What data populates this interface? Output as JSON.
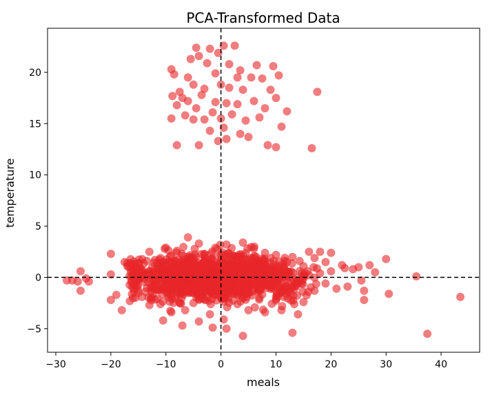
{
  "chart_data": {
    "type": "scatter",
    "title": "PCA-Transformed Data",
    "xlabel": "meals",
    "ylabel": "temperature",
    "xlim": [
      -31.5,
      47.0
    ],
    "ylim": [
      -7.3,
      24.3
    ],
    "xticks": [
      -30,
      -20,
      -10,
      0,
      10,
      20,
      30,
      40
    ],
    "yticks": [
      -5,
      0,
      5,
      10,
      15,
      20
    ],
    "xtick_labels": [
      "−30",
      "−20",
      "−10",
      "0",
      "10",
      "20",
      "30",
      "40"
    ],
    "ytick_labels": [
      "−5",
      "0",
      "5",
      "10",
      "15",
      "20"
    ],
    "grid": false,
    "reference_lines": {
      "x": 0,
      "y": 0,
      "style": "dashed",
      "color": "#000000"
    },
    "marker": {
      "color": "#e8262a",
      "opacity": 0.6
    },
    "points_main": [
      [
        -28,
        -0.3
      ],
      [
        -27,
        -0.3
      ],
      [
        -26,
        -0.4
      ],
      [
        -25.5,
        0.6
      ],
      [
        -25.5,
        -1.3
      ],
      [
        -24.5,
        -0.1
      ],
      [
        -24,
        -0.4
      ],
      [
        -20,
        2.3
      ],
      [
        -20,
        0.3
      ],
      [
        -20,
        -2.2
      ],
      [
        -19,
        -1.7
      ],
      [
        -18,
        -3.2
      ],
      [
        -17.5,
        1.5
      ],
      [
        -17,
        1.4
      ],
      [
        -16,
        -2.0
      ],
      [
        -15,
        1.4
      ],
      [
        -15,
        -1.5
      ],
      [
        -14,
        -0.1
      ],
      [
        -13,
        2.5
      ],
      [
        -13,
        -2.7
      ],
      [
        -12,
        1.7
      ],
      [
        -11,
        1.9
      ],
      [
        -11,
        -2.6
      ],
      [
        -10.5,
        -4.2
      ],
      [
        -10,
        2.9
      ],
      [
        -10,
        0.5
      ],
      [
        -9,
        -3.4
      ],
      [
        -9,
        -1.2
      ],
      [
        -8,
        2.6
      ],
      [
        -7.5,
        1.4
      ],
      [
        -7,
        -4.7
      ],
      [
        -6.5,
        -3.2
      ],
      [
        -6,
        1.5
      ],
      [
        -6,
        3.9
      ],
      [
        -5,
        -0.6
      ],
      [
        -5,
        -2.5
      ],
      [
        -4,
        3.3
      ],
      [
        -4,
        1.1
      ],
      [
        -4,
        -4.3
      ],
      [
        -3,
        0.1
      ],
      [
        -3,
        2.3
      ],
      [
        -2,
        1.1
      ],
      [
        -2,
        -1.5
      ],
      [
        -2,
        -3.6
      ],
      [
        -1.5,
        -4.9
      ],
      [
        -1,
        2.9
      ],
      [
        -1,
        0.8
      ],
      [
        -0.5,
        -0.4
      ],
      [
        0,
        1.7
      ],
      [
        0,
        -2.0
      ],
      [
        0.5,
        -4.1
      ],
      [
        1,
        3.2
      ],
      [
        1,
        0.5
      ],
      [
        1,
        -5.0
      ],
      [
        2,
        -1.3
      ],
      [
        2,
        2.1
      ],
      [
        3,
        -2.6
      ],
      [
        3,
        1.4
      ],
      [
        4,
        0.2
      ],
      [
        4,
        3.4
      ],
      [
        4,
        -5.7
      ],
      [
        5,
        -3.2
      ],
      [
        5,
        1.1
      ],
      [
        6,
        -0.6
      ],
      [
        6,
        2.8
      ],
      [
        7,
        -2.0
      ],
      [
        7,
        0.8
      ],
      [
        8,
        2.4
      ],
      [
        8,
        -3.4
      ],
      [
        9,
        -0.3
      ],
      [
        9,
        1.9
      ],
      [
        10,
        -1.9
      ],
      [
        10,
        2.2
      ],
      [
        11,
        0.5
      ],
      [
        11,
        -3.2
      ],
      [
        12,
        1.5
      ],
      [
        12,
        -1.2
      ],
      [
        13,
        -5.4
      ],
      [
        13,
        2.0
      ],
      [
        14,
        -0.5
      ],
      [
        14,
        -3.6
      ],
      [
        15,
        1.1
      ],
      [
        15,
        -2.4
      ],
      [
        16,
        0.2
      ],
      [
        16,
        2.5
      ],
      [
        17,
        -1.3
      ],
      [
        17,
        1.9
      ],
      [
        18,
        0.4
      ],
      [
        18,
        2.5
      ],
      [
        19,
        -0.6
      ],
      [
        19,
        1.5
      ],
      [
        20,
        2.4
      ],
      [
        20,
        0.6
      ],
      [
        21,
        -1.1
      ],
      [
        22,
        1.2
      ],
      [
        22.5,
        0.9
      ],
      [
        23,
        -0.9
      ],
      [
        24,
        0.8
      ],
      [
        25,
        1.0
      ],
      [
        25.5,
        -0.3
      ],
      [
        26,
        -1.3
      ],
      [
        26,
        -2.2
      ],
      [
        27,
        1.2
      ],
      [
        28,
        0.5
      ],
      [
        30,
        1.8
      ],
      [
        30.5,
        -1.6
      ],
      [
        35.5,
        0.1
      ],
      [
        37.5,
        -5.5
      ],
      [
        43.5,
        -1.9
      ]
    ],
    "points_upper": [
      [
        -9,
        15.5
      ],
      [
        -9,
        20.3
      ],
      [
        -8.8,
        17.7
      ],
      [
        -8.5,
        19.8
      ],
      [
        -8,
        16.8
      ],
      [
        -8,
        12.9
      ],
      [
        -7.5,
        18.1
      ],
      [
        -7,
        17.5
      ],
      [
        -6.5,
        15.8
      ],
      [
        -6,
        17.2
      ],
      [
        -6,
        19.5
      ],
      [
        -5.5,
        21.3
      ],
      [
        -5,
        15.4
      ],
      [
        -5,
        18.8
      ],
      [
        -4.5,
        22.4
      ],
      [
        -4.5,
        16.5
      ],
      [
        -4,
        21.6
      ],
      [
        -4,
        12.9
      ],
      [
        -3.5,
        17.8
      ],
      [
        -3,
        18.4
      ],
      [
        -3,
        15.4
      ],
      [
        -2.5,
        20.9
      ],
      [
        -2,
        14.3
      ],
      [
        -2,
        22.3
      ],
      [
        -1.5,
        16.1
      ],
      [
        -1,
        19.9
      ],
      [
        -1,
        17.1
      ],
      [
        -0.5,
        21.9
      ],
      [
        -0.5,
        13.3
      ],
      [
        0,
        15.5
      ],
      [
        0,
        18.8
      ],
      [
        0.5,
        14.6
      ],
      [
        0.5,
        22.6
      ],
      [
        1,
        13.5
      ],
      [
        1,
        17.0
      ],
      [
        1.5,
        18.5
      ],
      [
        1.5,
        20.8
      ],
      [
        2,
        15.9
      ],
      [
        2.5,
        22.6
      ],
      [
        3,
        19.5
      ],
      [
        3,
        16.9
      ],
      [
        3.5,
        14.0
      ],
      [
        3.5,
        20.2
      ],
      [
        4,
        18.3
      ],
      [
        4.5,
        15.3
      ],
      [
        5,
        13.7
      ],
      [
        5.5,
        19.5
      ],
      [
        6,
        17.2
      ],
      [
        6.5,
        20.7
      ],
      [
        7,
        15.6
      ],
      [
        7.5,
        19.4
      ],
      [
        8,
        16.5
      ],
      [
        8.5,
        12.9
      ],
      [
        9,
        18.3
      ],
      [
        9.5,
        20.6
      ],
      [
        10,
        17.5
      ],
      [
        10,
        12.7
      ],
      [
        10.5,
        19.7
      ],
      [
        11,
        14.7
      ],
      [
        12,
        16.2
      ],
      [
        16.5,
        12.6
      ],
      [
        17.5,
        18.1
      ]
    ]
  }
}
